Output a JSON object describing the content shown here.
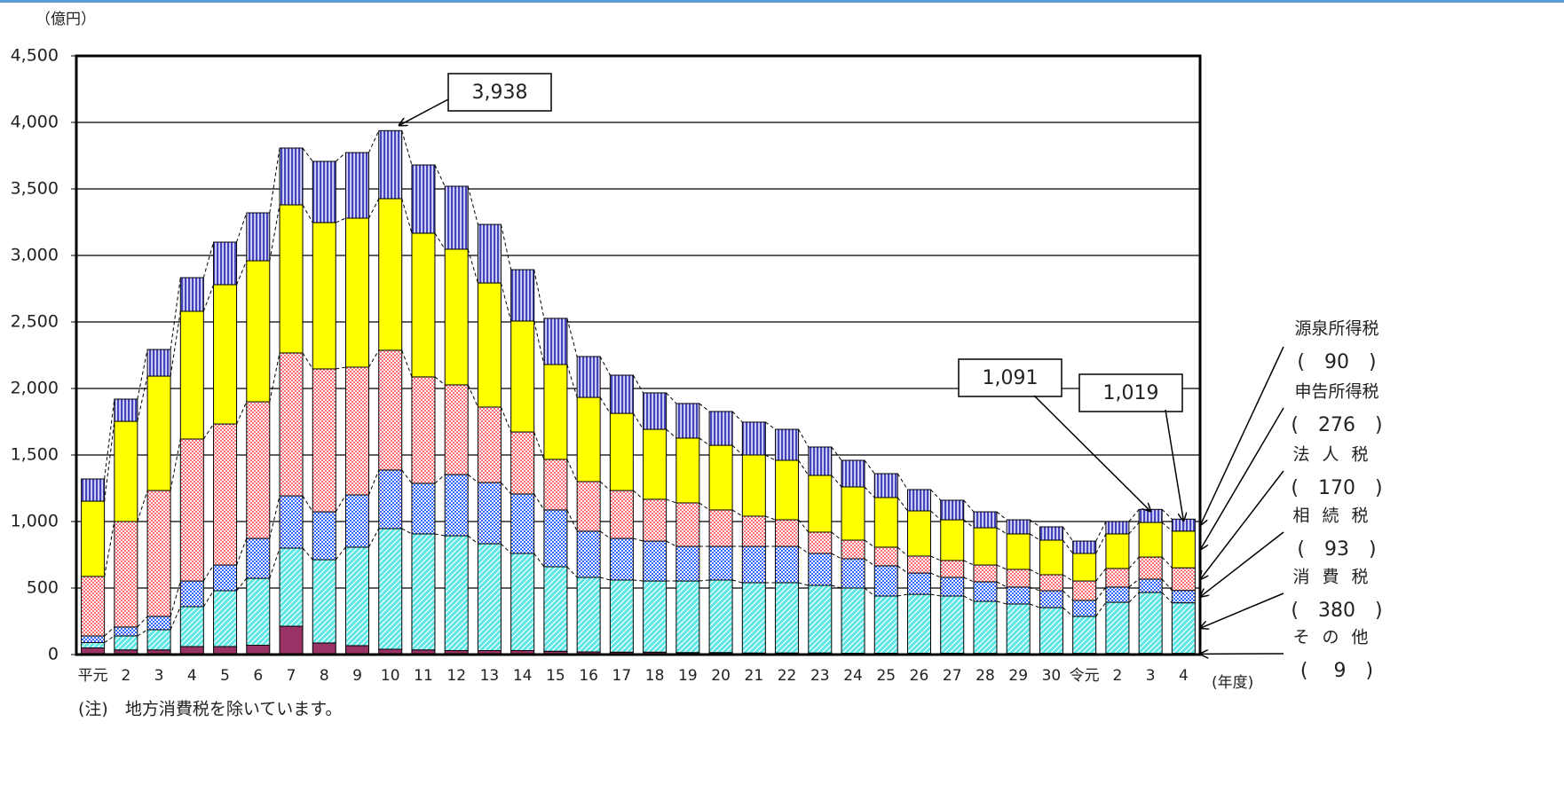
{
  "chart_data": {
    "type": "stacked_bar",
    "y_unit_label": "（億円）",
    "x_axis_label": "(年度)",
    "note": "(注)　地方消費税を除いています。",
    "categories": [
      "平元",
      "2",
      "3",
      "4",
      "5",
      "6",
      "7",
      "8",
      "9",
      "10",
      "11",
      "12",
      "13",
      "14",
      "15",
      "16",
      "17",
      "18",
      "19",
      "20",
      "21",
      "22",
      "23",
      "24",
      "25",
      "26",
      "27",
      "28",
      "29",
      "30",
      "令元",
      "2",
      "3",
      "4"
    ],
    "series": [
      {
        "name": "その他",
        "color": "#993366",
        "pattern": "solid",
        "values": [
          50,
          35,
          35,
          60,
          60,
          70,
          213,
          87,
          67,
          40,
          35,
          30,
          30,
          30,
          25,
          20,
          18,
          18,
          15,
          15,
          12,
          12,
          12,
          10,
          10,
          10,
          10,
          9,
          9,
          9,
          9,
          9,
          9,
          9
        ]
      },
      {
        "name": "消費税",
        "color": "#5ee6e6",
        "pattern": "diagonal",
        "values": [
          40,
          105,
          152,
          300,
          420,
          503,
          587,
          626,
          740,
          907,
          872,
          863,
          803,
          730,
          635,
          560,
          542,
          535,
          538,
          545,
          528,
          528,
          508,
          490,
          430,
          443,
          430,
          391,
          371,
          344,
          278,
          384,
          458,
          380
        ]
      },
      {
        "name": "相続税",
        "color": "#3366ff",
        "pattern": "checker",
        "values": [
          50,
          67,
          100,
          193,
          193,
          300,
          393,
          360,
          393,
          440,
          380,
          460,
          460,
          447,
          427,
          347,
          313,
          300,
          260,
          253,
          273,
          273,
          240,
          220,
          227,
          160,
          140,
          147,
          127,
          127,
          120,
          114,
          100,
          93
        ]
      },
      {
        "name": "法人税",
        "color": "#ff6f6f",
        "pattern": "checker",
        "values": [
          447,
          793,
          946,
          1067,
          1060,
          1027,
          1074,
          1074,
          960,
          900,
          800,
          674,
          567,
          466,
          380,
          373,
          360,
          314,
          327,
          274,
          227,
          200,
          160,
          140,
          140,
          127,
          127,
          126,
          133,
          120,
          146,
          140,
          166,
          170
        ]
      },
      {
        "name": "申告所得税",
        "color": "#ffff00",
        "pattern": "solid",
        "values": [
          566,
          753,
          860,
          960,
          1047,
          1060,
          1113,
          1100,
          1120,
          1140,
          1080,
          1020,
          933,
          834,
          713,
          633,
          580,
          526,
          487,
          486,
          460,
          447,
          427,
          400,
          373,
          340,
          306,
          280,
          267,
          260,
          207,
          260,
          260,
          276
        ]
      },
      {
        "name": "源泉所得税",
        "color": "#4444bb",
        "pattern": "vertical",
        "values": [
          167,
          167,
          200,
          253,
          320,
          360,
          427,
          460,
          493,
          511,
          513,
          473,
          440,
          386,
          347,
          307,
          287,
          274,
          260,
          254,
          247,
          233,
          213,
          200,
          180,
          160,
          147,
          120,
          106,
          100,
          93,
          93,
          98,
          90
        ]
      }
    ],
    "legend_value_labels": [
      "(　 9　)",
      "(　380　)",
      "(　93　)",
      "(　170　)",
      "(　276　)",
      "(　90　)"
    ],
    "annotations": [
      {
        "text": "3,938",
        "value": 3938
      },
      {
        "text": "1,091",
        "value": 1091
      },
      {
        "text": "1,019",
        "value": 1019
      }
    ],
    "ylim": [
      0,
      4500
    ],
    "yticks": [
      0,
      500,
      {
        "value": 1000,
        "label": "1,000"
      },
      {
        "value": 1500,
        "label": "1,500"
      },
      {
        "value": 2000,
        "label": "2,000"
      },
      {
        "value": 2500,
        "label": "2,500"
      },
      {
        "value": 3000,
        "label": "3,000"
      },
      {
        "value": 3500,
        "label": "3,500"
      },
      {
        "value": 4000,
        "label": "4,000"
      },
      {
        "value": 4500,
        "label": "4,500"
      }
    ],
    "grid": true
  }
}
